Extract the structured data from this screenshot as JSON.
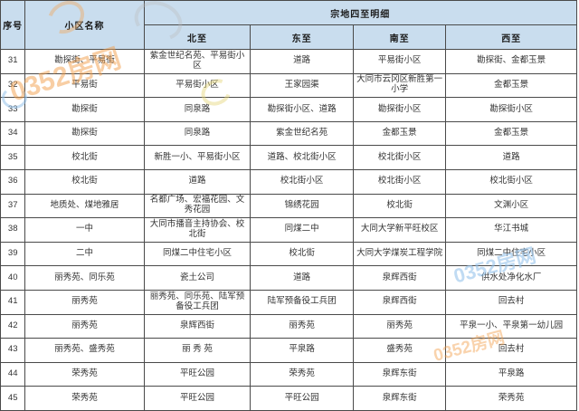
{
  "watermark": {
    "text": "0352房网",
    "orange": "#f29e49",
    "blue": "#96c3eb"
  },
  "table": {
    "header": {
      "col_no": "序号",
      "col_name": "小区名称",
      "col_group": "宗地四至明细",
      "sub_cols": [
        "北至",
        "东至",
        "南至",
        "西至"
      ]
    },
    "rows": [
      {
        "no": "31",
        "name": "勘探街、平易街",
        "north": "紫金世纪名苑、平易街小区",
        "east": "道路",
        "south": "平易街小区",
        "west": "勘探街、金都玉景"
      },
      {
        "no": "32",
        "name": "平易街",
        "north": "平易街小区",
        "east": "王家园渠",
        "south": "大同市云冈区新胜第一小学",
        "west": "金都玉景"
      },
      {
        "no": "33",
        "name": "勘探街",
        "north": "同泉路",
        "east": "勘探街小区、道路",
        "south": "勘探街小区",
        "west": "勘探街小区"
      },
      {
        "no": "34",
        "name": "勘探街",
        "north": "同泉路",
        "east": "紫金世纪名苑",
        "south": "金都玉景",
        "west": "金都玉景"
      },
      {
        "no": "35",
        "name": "校北街",
        "north": "新胜一小、平易街小区",
        "east": "道路、校北街小区",
        "south": "校北街小区",
        "west": "道路"
      },
      {
        "no": "36",
        "name": "校北街",
        "north": "道路",
        "east": "校北街小区",
        "south": "校北街小区",
        "west": "校北街小区"
      },
      {
        "no": "37",
        "name": "地质处、煤地雅居",
        "north": "名都广场、宏福花园、文秀花园",
        "east": "锦绣花园",
        "south": "校北街",
        "west": "文渊小区"
      },
      {
        "no": "38",
        "name": "一中",
        "north": "大同市播音主持协会、校北街",
        "east": "同煤二中",
        "south": "大同大学新平旺校区",
        "west": "华江书城"
      },
      {
        "no": "39",
        "name": "二中",
        "north": "同煤二中住宅小区",
        "east": "校北街",
        "south": "大同大学煤炭工程学院",
        "west": "同煤二中住宅小区"
      },
      {
        "no": "40",
        "name": "丽秀苑、同乐苑",
        "north": "瓷土公司",
        "east": "道路",
        "south": "泉辉西街",
        "west": "供水处净化水厂"
      },
      {
        "no": "41",
        "name": "丽秀苑",
        "north": "丽秀苑、同乐苑、陆军预备役工兵团",
        "east": "陆军预备役工兵团",
        "south": "泉辉西街",
        "west": "回去村"
      },
      {
        "no": "42",
        "name": "丽秀苑",
        "north": "泉辉西街",
        "east": "丽秀苑",
        "south": "丽秀苑",
        "west": "平泉一小、平泉第一幼儿园"
      },
      {
        "no": "43",
        "name": "丽秀苑、盛秀苑",
        "north": "丽 秀 苑",
        "east": "平泉路",
        "south": "盛秀苑",
        "west": "回去村"
      },
      {
        "no": "44",
        "name": "荣秀苑",
        "north": "平旺公园",
        "east": "荣秀苑",
        "south": "泉辉东街",
        "west": "平泉路"
      },
      {
        "no": "45",
        "name": "荣秀苑",
        "north": "平旺公园",
        "east": "平旺公园",
        "south": "泉辉东街",
        "west": "荣秀苑"
      }
    ]
  }
}
